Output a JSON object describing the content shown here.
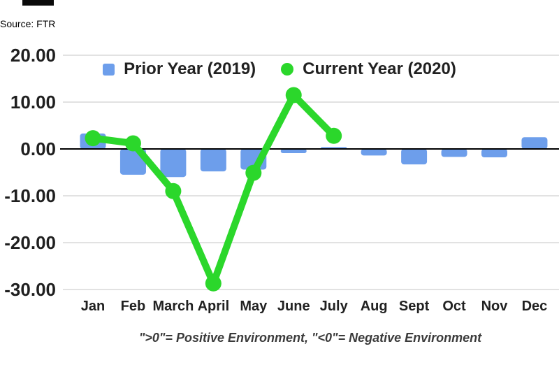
{
  "page": {
    "source_label": "Source: FTR",
    "caption": "\">0\"= Positive Environment, \"<0\"= Negative Environment"
  },
  "legend": {
    "items": [
      {
        "label": "Prior Year (2019)",
        "marker": "square",
        "color": "#6d9eeb"
      },
      {
        "label": "Current Year (2020)",
        "marker": "circle",
        "color": "#2bd72b"
      }
    ]
  },
  "chart_data": {
    "type": "bar",
    "title": "",
    "xlabel": "",
    "ylabel": "",
    "categories": [
      "Jan",
      "Feb",
      "March",
      "April",
      "May",
      "June",
      "July",
      "Aug",
      "Sept",
      "Oct",
      "Nov",
      "Dec"
    ],
    "series": [
      {
        "name": "Prior Year (2019)",
        "type": "bar",
        "color": "#6d9eeb",
        "values": [
          3.3,
          -5.5,
          -6.0,
          -4.8,
          -4.4,
          -0.9,
          0.4,
          -1.4,
          -3.3,
          -1.7,
          -1.8,
          2.5
        ]
      },
      {
        "name": "Current Year (2020)",
        "type": "line",
        "color": "#2bd72b",
        "values": [
          2.3,
          1.2,
          -9.0,
          -28.7,
          -5.1,
          11.5,
          2.8,
          null,
          null,
          null,
          null,
          null
        ]
      }
    ],
    "ylim": [
      -30,
      20
    ],
    "ytick_step": 10,
    "ytick_labels": [
      "20.00",
      "10.00",
      "0.00",
      "-10.00",
      "-20.00",
      "-30.00"
    ],
    "grid": true,
    "zero_line": true,
    "legend_position": "top"
  },
  "colors": {
    "grid_line": "#d9d9d9",
    "zero_line": "#000000",
    "axis_text": "#1f1f1f",
    "month_text": "#212121"
  }
}
